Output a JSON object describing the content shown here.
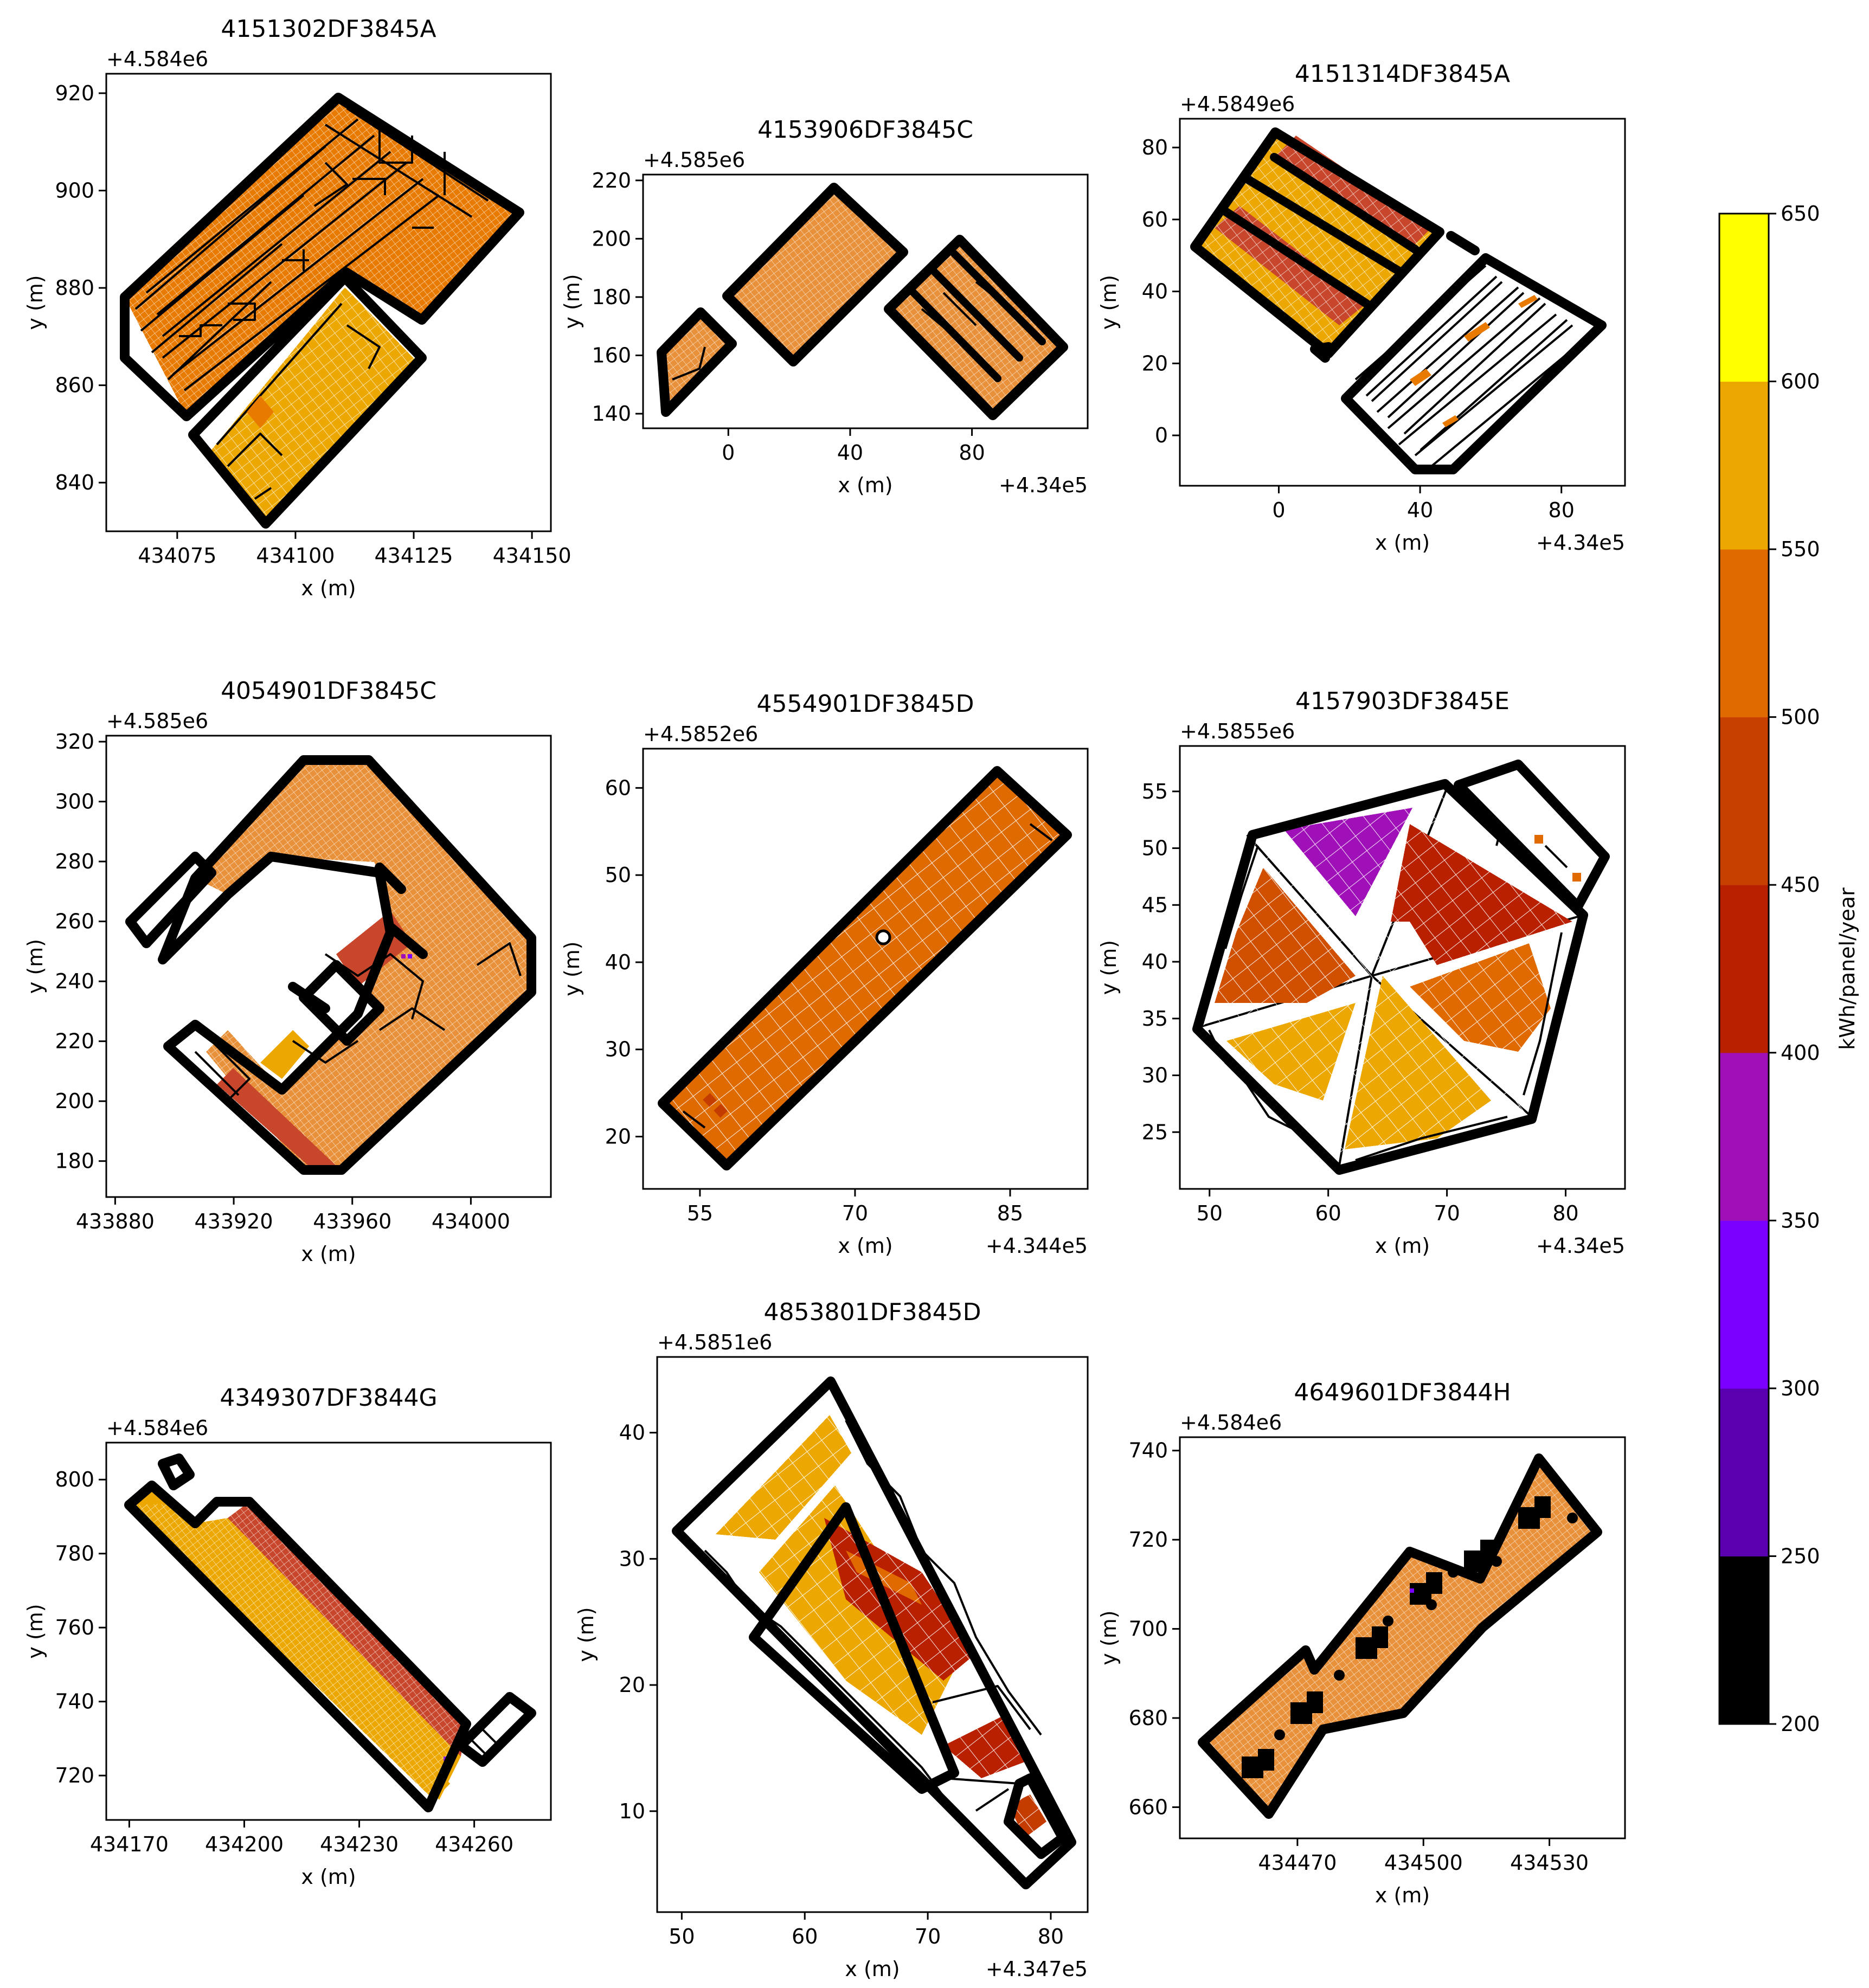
{
  "chart_data": [
    {
      "type": "heatmap",
      "title": "4151302DF3845A",
      "xlabel": "x (m)",
      "ylabel": "y (m)",
      "x_offset": "",
      "y_offset": "+4.584e6",
      "xticks": [
        "434075",
        "434100",
        "434125",
        "434150"
      ],
      "yticks": [
        "840",
        "860",
        "880",
        "900",
        "920"
      ],
      "xlim": [
        434060,
        434154
      ],
      "ylim": [
        830,
        924
      ],
      "panel_fill": [
        "#ffffff",
        "#e87a00",
        "#d06000",
        "#eca800",
        "#c43c00"
      ],
      "dominant_kwh": 520
    },
    {
      "type": "heatmap",
      "title": "4153906DF3845C",
      "xlabel": "x (m)",
      "ylabel": "y (m)",
      "x_offset": "+4.34e5",
      "y_offset": "+4.585e6",
      "xticks": [
        "0",
        "40",
        "80"
      ],
      "yticks": [
        "140",
        "160",
        "180",
        "200",
        "220"
      ],
      "xlim": [
        -28,
        118
      ],
      "ylim": [
        135,
        222
      ],
      "panel_fill": [
        "#e8913a"
      ],
      "dominant_kwh": 520
    },
    {
      "type": "heatmap",
      "title": "4151314DF3845A",
      "xlabel": "x (m)",
      "ylabel": "y (m)",
      "x_offset": "+4.34e5",
      "y_offset": "+4.5849e6",
      "xticks": [
        "0",
        "40",
        "80"
      ],
      "yticks": [
        "0",
        "20",
        "40",
        "60",
        "80"
      ],
      "xlim": [
        -28,
        98
      ],
      "ylim": [
        -14,
        88
      ],
      "panel_fill": [
        "#eca800",
        "#c8472c",
        "#e87a00"
      ],
      "dominant_kwh": 560
    },
    {
      "type": "heatmap",
      "title": "4054901DF3845C",
      "xlabel": "x (m)",
      "ylabel": "y (m)",
      "x_offset": "",
      "y_offset": "+4.585e6",
      "xticks": [
        "433880",
        "433920",
        "433960",
        "434000"
      ],
      "yticks": [
        "180",
        "200",
        "220",
        "240",
        "260",
        "280",
        "300",
        "320"
      ],
      "xlim": [
        433877,
        434027
      ],
      "ylim": [
        168,
        322
      ],
      "panel_fill": [
        "#e8913a",
        "#c8472c",
        "#eca800"
      ],
      "dominant_kwh": 520
    },
    {
      "type": "heatmap",
      "title": "4554901DF3845D",
      "xlabel": "x (m)",
      "ylabel": "y (m)",
      "x_offset": "+4.344e5",
      "y_offset": "+4.5852e6",
      "xticks": [
        "55",
        "70",
        "85"
      ],
      "yticks": [
        "20",
        "30",
        "40",
        "50",
        "60"
      ],
      "xlim": [
        49.5,
        92.5
      ],
      "ylim": [
        14,
        64.5
      ],
      "panel_fill": [
        "#de6a00"
      ],
      "dominant_kwh": 510
    },
    {
      "type": "heatmap",
      "title": "4157903DF3845E",
      "xlabel": "x (m)",
      "ylabel": "y (m)",
      "x_offset": "+4.34e5",
      "y_offset": "+4.5855e6",
      "xticks": [
        "50",
        "60",
        "70",
        "80"
      ],
      "yticks": [
        "25",
        "30",
        "35",
        "40",
        "45",
        "50",
        "55"
      ],
      "xlim": [
        47.5,
        85
      ],
      "ylim": [
        20,
        59
      ],
      "panel_fill": [
        "#a010b8",
        "#b82000",
        "#d05000",
        "#eca800",
        "#e06a00"
      ],
      "dominant_kwh": 520
    },
    {
      "type": "heatmap",
      "title": "4349307DF3844G",
      "xlabel": "x (m)",
      "ylabel": "y (m)",
      "x_offset": "",
      "y_offset": "+4.584e6",
      "xticks": [
        "434170",
        "434200",
        "434230",
        "434260"
      ],
      "yticks": [
        "720",
        "740",
        "760",
        "780",
        "800"
      ],
      "xlim": [
        434164,
        434280
      ],
      "ylim": [
        708,
        810
      ],
      "panel_fill": [
        "#eca800",
        "#c8472c",
        "#8a20e0"
      ],
      "dominant_kwh": 570
    },
    {
      "type": "heatmap",
      "title": "4853801DF3845D",
      "xlabel": "x (m)",
      "ylabel": "y (m)",
      "x_offset": "+4.347e5",
      "y_offset": "+4.5851e6",
      "xticks": [
        "50",
        "60",
        "70",
        "80"
      ],
      "yticks": [
        "10",
        "20",
        "30",
        "40"
      ],
      "xlim": [
        48,
        83
      ],
      "ylim": [
        2,
        46
      ],
      "panel_fill": [
        "#eca800",
        "#e06a00",
        "#b82000"
      ],
      "dominant_kwh": 560
    },
    {
      "type": "heatmap",
      "title": "4649601DF3844H",
      "xlabel": "x (m)",
      "ylabel": "y (m)",
      "x_offset": "",
      "y_offset": "+4.584e6",
      "xticks": [
        "434470",
        "434500",
        "434530"
      ],
      "yticks": [
        "660",
        "680",
        "700",
        "720",
        "740"
      ],
      "xlim": [
        434442,
        434548
      ],
      "ylim": [
        653,
        743
      ],
      "panel_fill": [
        "#e8913a"
      ],
      "dominant_kwh": 520
    }
  ],
  "colorbar": {
    "label": "kWh/panel/year",
    "ticks": [
      "200",
      "250",
      "300",
      "350",
      "400",
      "450",
      "500",
      "550",
      "600",
      "650"
    ],
    "bands": [
      {
        "from": 200,
        "to": 250,
        "color": "#000000"
      },
      {
        "from": 250,
        "to": 300,
        "color": "#5a00b0"
      },
      {
        "from": 300,
        "to": 350,
        "color": "#7a00ff"
      },
      {
        "from": 350,
        "to": 400,
        "color": "#a010b8"
      },
      {
        "from": 400,
        "to": 450,
        "color": "#b82000"
      },
      {
        "from": 450,
        "to": 500,
        "color": "#c84000"
      },
      {
        "from": 500,
        "to": 550,
        "color": "#e06a00"
      },
      {
        "from": 550,
        "to": 600,
        "color": "#eca800"
      },
      {
        "from": 600,
        "to": 650,
        "color": "#ffff00"
      }
    ]
  }
}
